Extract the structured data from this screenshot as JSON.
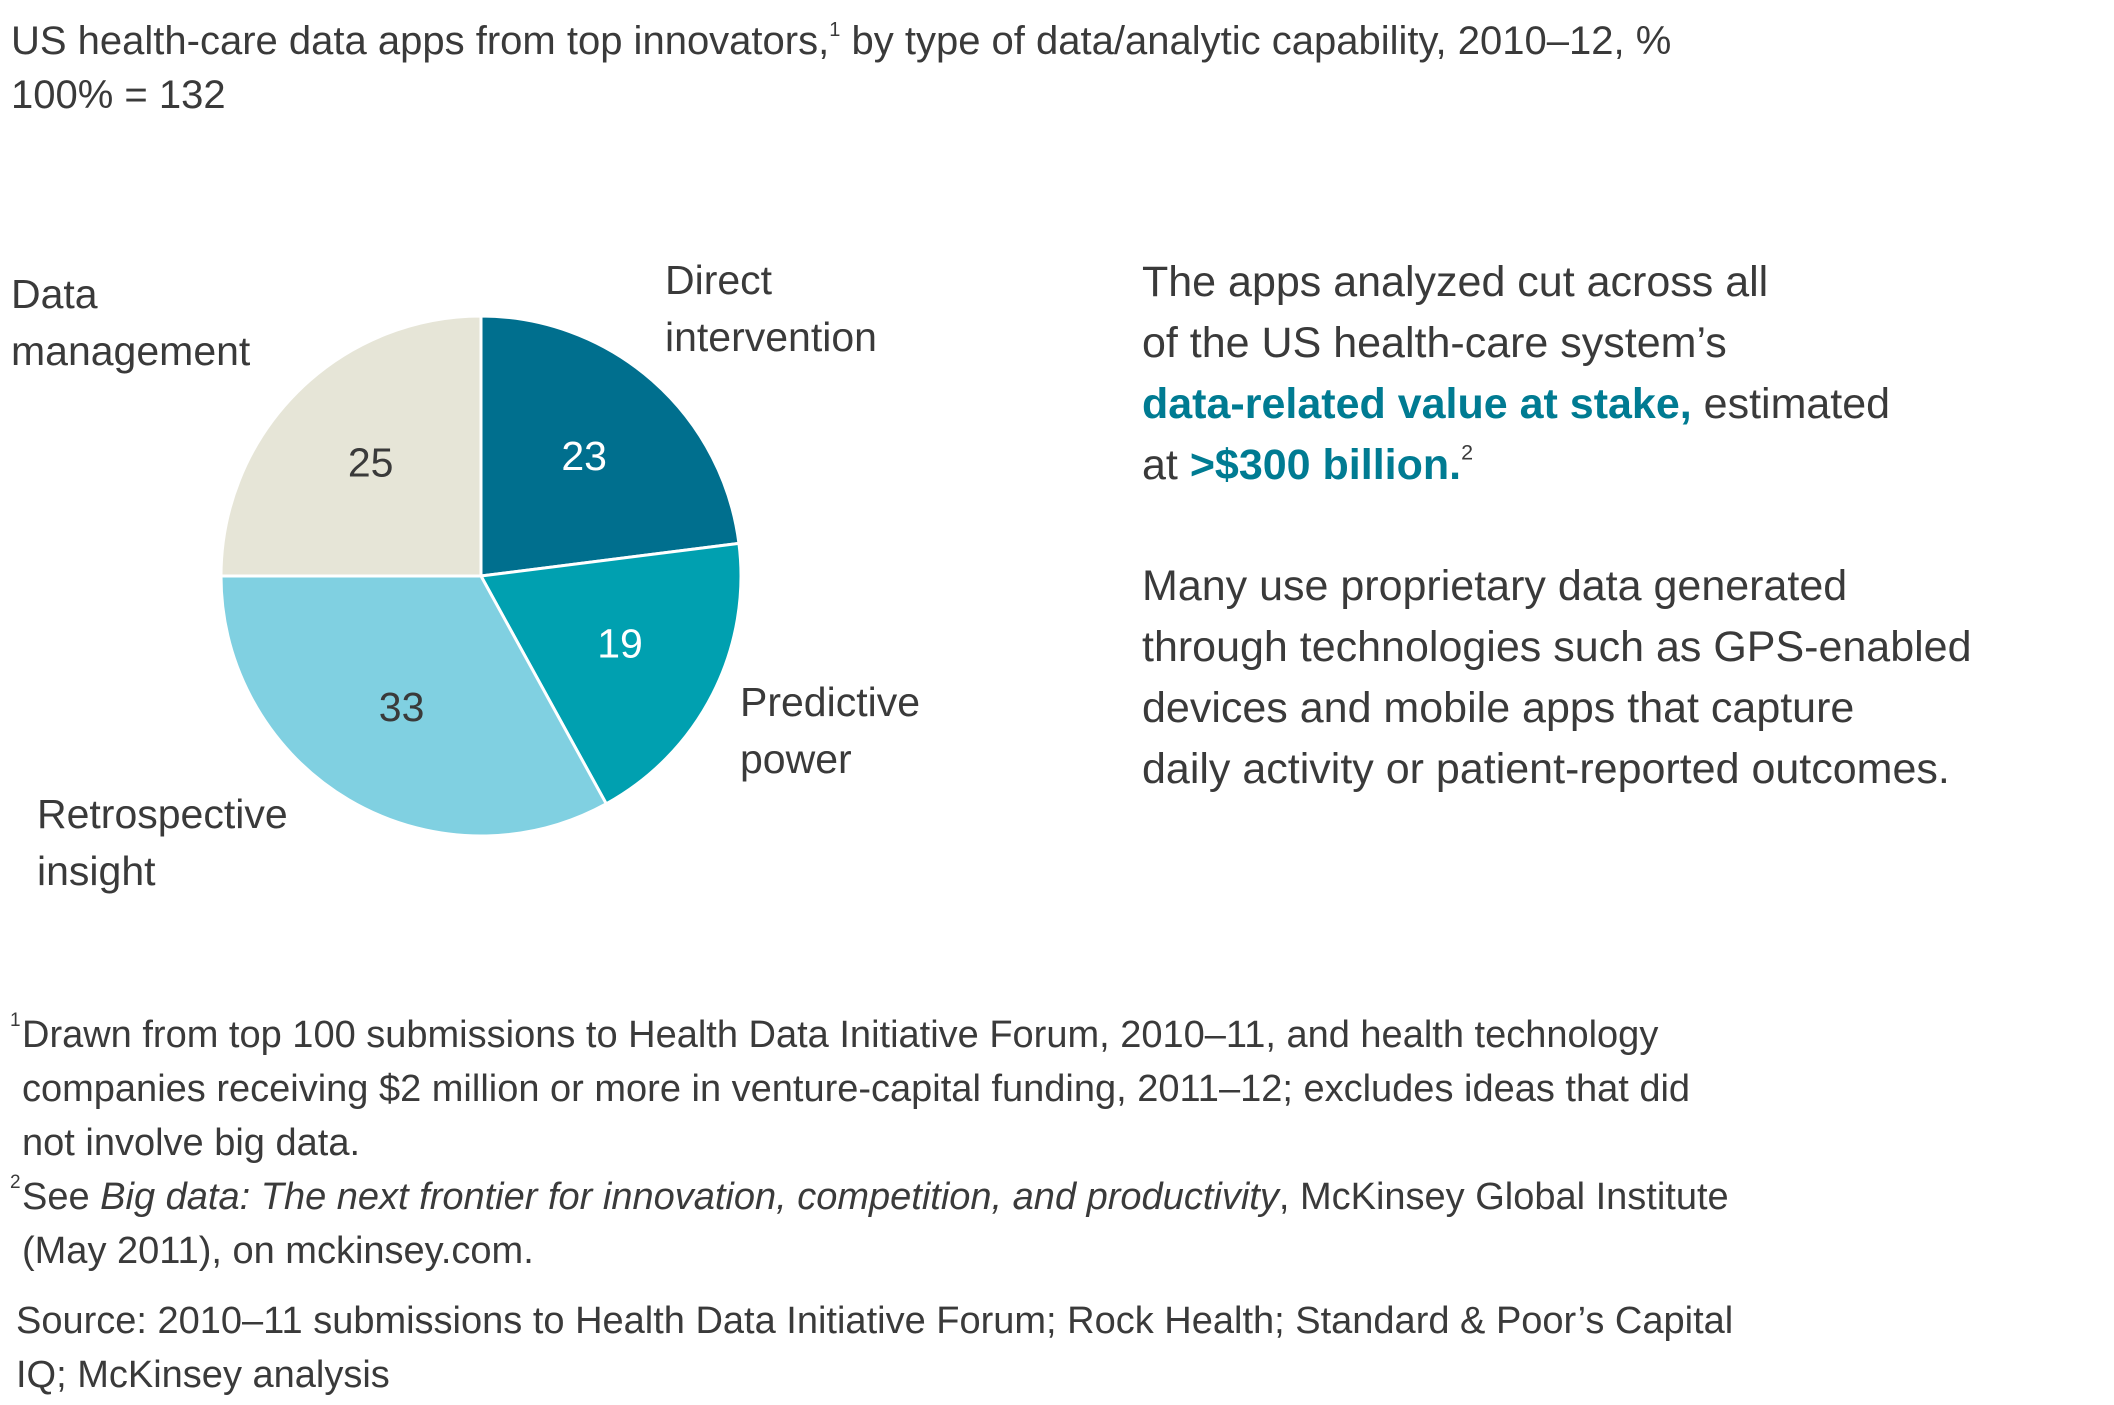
{
  "chart_data": {
    "type": "pie",
    "title": [
      "US health-care data apps from top innovators,",
      "1",
      " by type of data/analytic capability, 2010–12, %"
    ],
    "subtitle": "100% = 132",
    "categories": [
      "Direct intervention",
      "Predictive power",
      "Retrospective insight",
      "Data management"
    ],
    "values": [
      23,
      19,
      33,
      25
    ],
    "colors": [
      "#006f8e",
      "#00a0b0",
      "#80d0e1",
      "#e6e5d7"
    ],
    "label_colors": [
      "#ffffff",
      "#ffffff",
      "#3a3a3a",
      "#3a3a3a"
    ]
  },
  "callout": {
    "paragraph1": [
      "The apps analyzed cut across all",
      "of the US health-care system’s",
      "data-related value at stake,",
      " estimated",
      "at ",
      ">$300 billion.",
      "2"
    ],
    "paragraph2": [
      "Many use proprietary data generated",
      "through technologies such as GPS-enabled",
      "devices and mobile apps that capture",
      "daily activity or patient-reported outcomes."
    ]
  },
  "footnotes": [
    {
      "marker": "1",
      "lines": [
        "Drawn from top 100 submissions to Health Data Initiative Forum, 2010–11, and health technology",
        "companies receiving $2 million or more in venture-capital funding, 2011–12; excludes ideas that did",
        "not involve big data."
      ]
    },
    {
      "marker": "2",
      "parts": [
        "See ",
        "Big data: The next frontier for innovation, competition, and productivity",
        ", McKinsey Global Institute"
      ],
      "lines": [
        "(May 2011), on mckinsey.com."
      ]
    }
  ],
  "source": [
    "Source: 2010–11 submissions to Health Data Initiative Forum; Rock Health; Standard & Poor’s Capital",
    "IQ; McKinsey analysis"
  ]
}
